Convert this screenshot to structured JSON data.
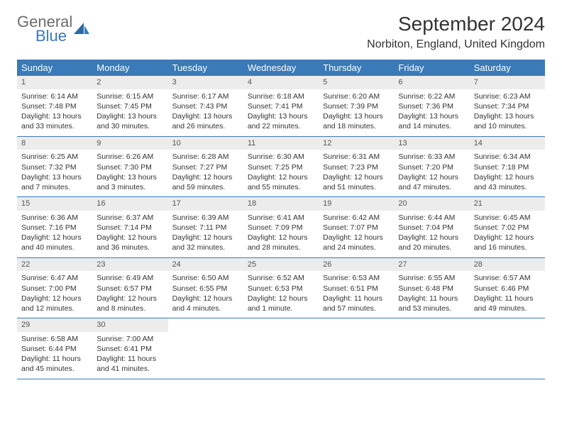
{
  "logo": {
    "general": "General",
    "blue": "Blue"
  },
  "title": "September 2024",
  "location": "Norbiton, England, United Kingdom",
  "weekdays": [
    "Sunday",
    "Monday",
    "Tuesday",
    "Wednesday",
    "Thursday",
    "Friday",
    "Saturday"
  ],
  "header_bg": "#3a7ab8",
  "daynum_bg": "#ececec",
  "row_border": "#3a7ab8",
  "days": [
    {
      "n": 1,
      "sunrise": "6:14 AM",
      "sunset": "7:48 PM",
      "dl": "13 hours and 33 minutes."
    },
    {
      "n": 2,
      "sunrise": "6:15 AM",
      "sunset": "7:45 PM",
      "dl": "13 hours and 30 minutes."
    },
    {
      "n": 3,
      "sunrise": "6:17 AM",
      "sunset": "7:43 PM",
      "dl": "13 hours and 26 minutes."
    },
    {
      "n": 4,
      "sunrise": "6:18 AM",
      "sunset": "7:41 PM",
      "dl": "13 hours and 22 minutes."
    },
    {
      "n": 5,
      "sunrise": "6:20 AM",
      "sunset": "7:39 PM",
      "dl": "13 hours and 18 minutes."
    },
    {
      "n": 6,
      "sunrise": "6:22 AM",
      "sunset": "7:36 PM",
      "dl": "13 hours and 14 minutes."
    },
    {
      "n": 7,
      "sunrise": "6:23 AM",
      "sunset": "7:34 PM",
      "dl": "13 hours and 10 minutes."
    },
    {
      "n": 8,
      "sunrise": "6:25 AM",
      "sunset": "7:32 PM",
      "dl": "13 hours and 7 minutes."
    },
    {
      "n": 9,
      "sunrise": "6:26 AM",
      "sunset": "7:30 PM",
      "dl": "13 hours and 3 minutes."
    },
    {
      "n": 10,
      "sunrise": "6:28 AM",
      "sunset": "7:27 PM",
      "dl": "12 hours and 59 minutes."
    },
    {
      "n": 11,
      "sunrise": "6:30 AM",
      "sunset": "7:25 PM",
      "dl": "12 hours and 55 minutes."
    },
    {
      "n": 12,
      "sunrise": "6:31 AM",
      "sunset": "7:23 PM",
      "dl": "12 hours and 51 minutes."
    },
    {
      "n": 13,
      "sunrise": "6:33 AM",
      "sunset": "7:20 PM",
      "dl": "12 hours and 47 minutes."
    },
    {
      "n": 14,
      "sunrise": "6:34 AM",
      "sunset": "7:18 PM",
      "dl": "12 hours and 43 minutes."
    },
    {
      "n": 15,
      "sunrise": "6:36 AM",
      "sunset": "7:16 PM",
      "dl": "12 hours and 40 minutes."
    },
    {
      "n": 16,
      "sunrise": "6:37 AM",
      "sunset": "7:14 PM",
      "dl": "12 hours and 36 minutes."
    },
    {
      "n": 17,
      "sunrise": "6:39 AM",
      "sunset": "7:11 PM",
      "dl": "12 hours and 32 minutes."
    },
    {
      "n": 18,
      "sunrise": "6:41 AM",
      "sunset": "7:09 PM",
      "dl": "12 hours and 28 minutes."
    },
    {
      "n": 19,
      "sunrise": "6:42 AM",
      "sunset": "7:07 PM",
      "dl": "12 hours and 24 minutes."
    },
    {
      "n": 20,
      "sunrise": "6:44 AM",
      "sunset": "7:04 PM",
      "dl": "12 hours and 20 minutes."
    },
    {
      "n": 21,
      "sunrise": "6:45 AM",
      "sunset": "7:02 PM",
      "dl": "12 hours and 16 minutes."
    },
    {
      "n": 22,
      "sunrise": "6:47 AM",
      "sunset": "7:00 PM",
      "dl": "12 hours and 12 minutes."
    },
    {
      "n": 23,
      "sunrise": "6:49 AM",
      "sunset": "6:57 PM",
      "dl": "12 hours and 8 minutes."
    },
    {
      "n": 24,
      "sunrise": "6:50 AM",
      "sunset": "6:55 PM",
      "dl": "12 hours and 4 minutes."
    },
    {
      "n": 25,
      "sunrise": "6:52 AM",
      "sunset": "6:53 PM",
      "dl": "12 hours and 1 minute."
    },
    {
      "n": 26,
      "sunrise": "6:53 AM",
      "sunset": "6:51 PM",
      "dl": "11 hours and 57 minutes."
    },
    {
      "n": 27,
      "sunrise": "6:55 AM",
      "sunset": "6:48 PM",
      "dl": "11 hours and 53 minutes."
    },
    {
      "n": 28,
      "sunrise": "6:57 AM",
      "sunset": "6:46 PM",
      "dl": "11 hours and 49 minutes."
    },
    {
      "n": 29,
      "sunrise": "6:58 AM",
      "sunset": "6:44 PM",
      "dl": "11 hours and 45 minutes."
    },
    {
      "n": 30,
      "sunrise": "7:00 AM",
      "sunset": "6:41 PM",
      "dl": "11 hours and 41 minutes."
    }
  ],
  "labels": {
    "sunrise": "Sunrise:",
    "sunset": "Sunset:",
    "daylight": "Daylight:"
  }
}
